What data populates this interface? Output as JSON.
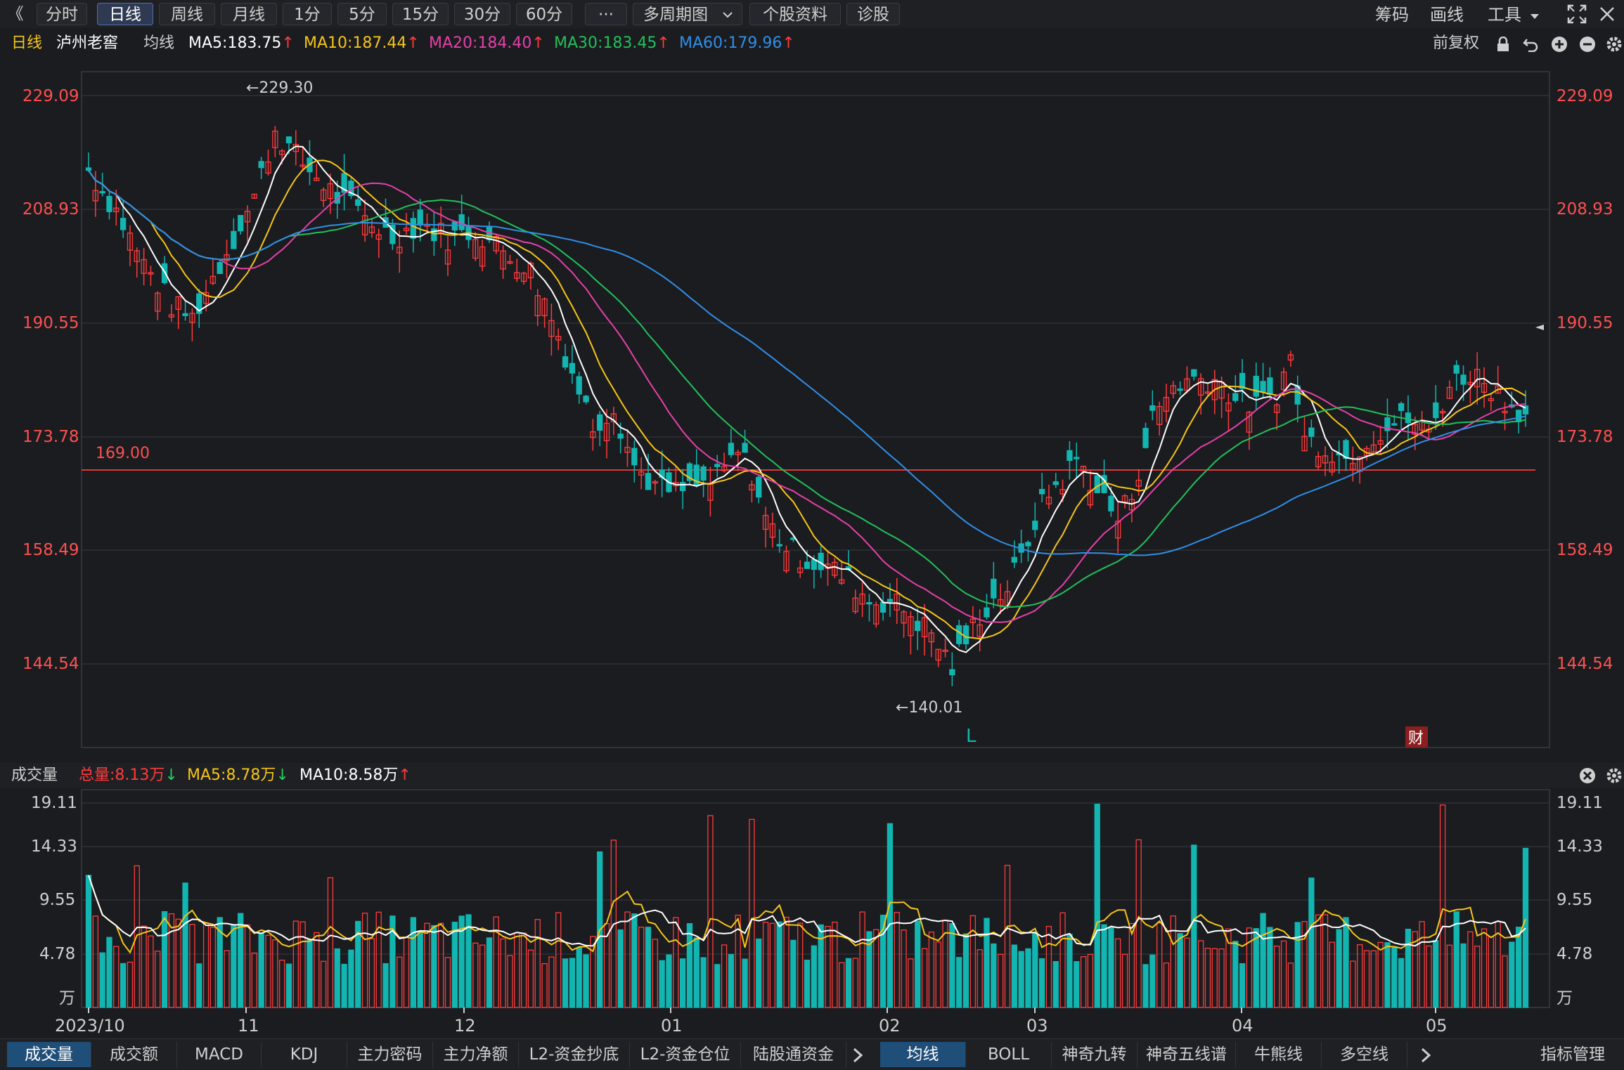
{
  "toolbar": {
    "back": "《",
    "periods": [
      "分时",
      "日线",
      "周线",
      "月线",
      "1分",
      "5分",
      "15分",
      "30分",
      "60分"
    ],
    "more": "···",
    "multi_period": "多周期图",
    "stock_info": "个股资料",
    "diagnose": "诊股",
    "right": {
      "chips": "筹码",
      "draw": "画线",
      "tools": "工具"
    }
  },
  "main_header": {
    "period": "日线",
    "stock": "泸州老窖",
    "ma_label": "均线",
    "ma5": "MA5:183.75",
    "ma10": "MA10:187.44",
    "ma20": "MA20:184.40",
    "ma30": "MA30:183.45",
    "ma60": "MA60:179.96",
    "adjust": "前复权"
  },
  "colors": {
    "up": "#ff3b3b",
    "down": "#13b5b1",
    "ma5": "#ffffff",
    "ma10": "#f5c518",
    "ma20": "#e640a8",
    "ma30": "#22c05a",
    "ma60": "#2f8fe8",
    "ref_line": "#d83a3a",
    "bg": "#1b1c20",
    "grid": "#33343a"
  },
  "chart_data": {
    "type": "candlestick",
    "price_ticks": [
      "229.09",
      "208.93",
      "190.55",
      "173.78",
      "158.49",
      "144.54"
    ],
    "high_marker": "←229.30",
    "low_marker": "←140.01",
    "ref_line_label": "169.00",
    "ref_line_value": 169.0,
    "marker_L": "L",
    "marker_cai": "财",
    "x_labels": [
      "2023/10",
      "11",
      "12",
      "01",
      "02",
      "03",
      "04",
      "05"
    ],
    "volume_ticks": [
      "19.11",
      "14.33",
      "9.55",
      "4.78",
      "万"
    ],
    "volume_unit": "万"
  },
  "volume_header": {
    "label": "成交量",
    "total": "总量:8.13万",
    "ma5": "MA5:8.78万",
    "ma10": "MA10:8.58万"
  },
  "bottom_tabs_left": [
    "成交量",
    "成交额",
    "MACD",
    "KDJ",
    "主力密码",
    "主力净额",
    "L2-资金抄底",
    "L2-资金仓位",
    "陆股通资金"
  ],
  "bottom_tabs_right": [
    "均线",
    "BOLL",
    "神奇九转",
    "神奇五线谱",
    "牛熊线",
    "多空线"
  ],
  "indicator_manage": "指标管理"
}
